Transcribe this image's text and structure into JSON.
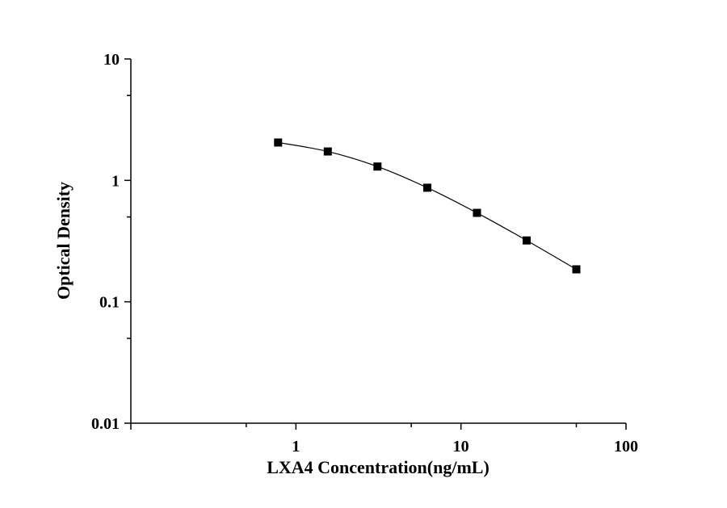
{
  "chart_data": {
    "type": "scatter",
    "title": "",
    "xlabel": "LXA4 Concentration(ng/mL)",
    "ylabel": "Optical Density",
    "x_scale": "log",
    "y_scale": "log",
    "xlim": [
      0.1,
      100
    ],
    "ylim": [
      0.01,
      10
    ],
    "x_ticks": [
      1,
      10,
      100
    ],
    "x_tick_labels": [
      "1",
      "10",
      "100"
    ],
    "y_ticks": [
      0.01,
      0.1,
      1,
      10
    ],
    "y_tick_labels": [
      "0.01",
      "0.1",
      "1",
      "10"
    ],
    "grid": false,
    "legend": "none",
    "series": [
      {
        "marker": "square",
        "color": "#000000",
        "fit_line": true,
        "x": [
          0.78,
          1.56,
          3.12,
          6.25,
          12.5,
          25,
          50
        ],
        "y": [
          2.05,
          1.73,
          1.3,
          0.87,
          0.54,
          0.32,
          0.185
        ]
      }
    ]
  }
}
